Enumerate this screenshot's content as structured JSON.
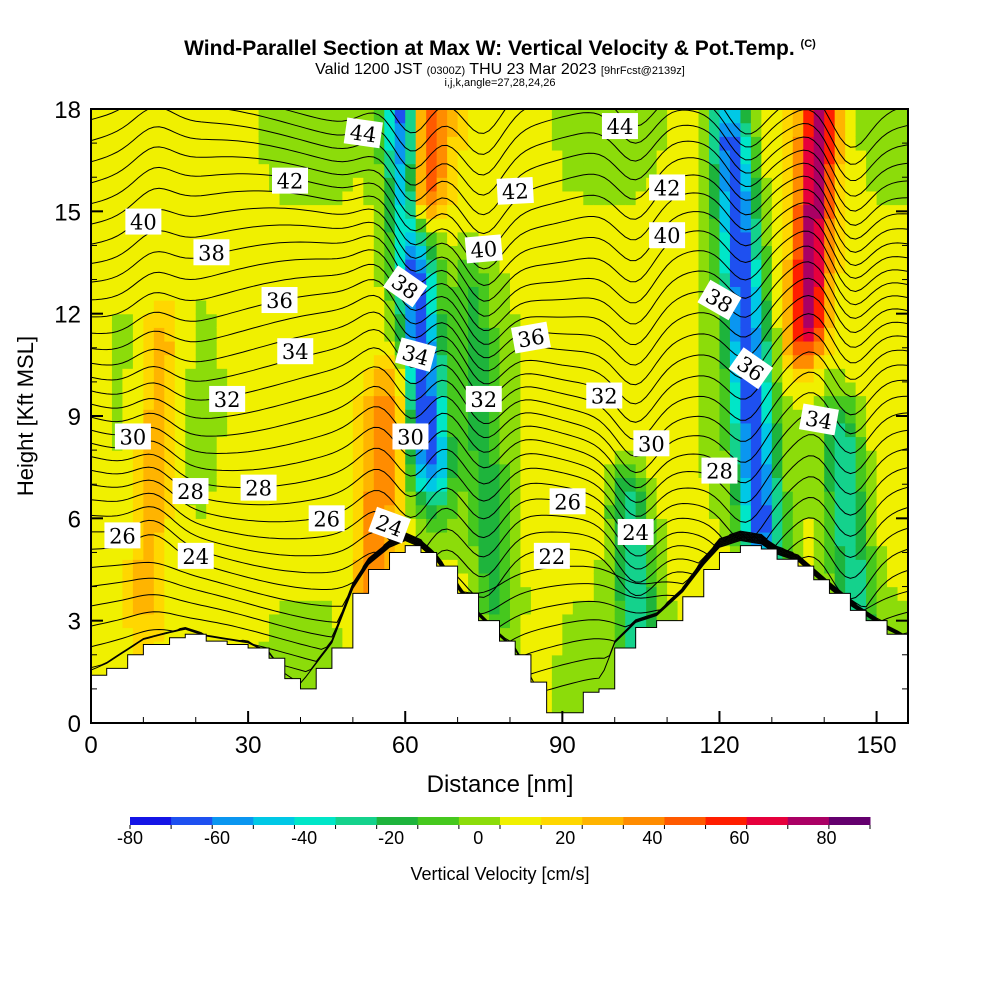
{
  "title": {
    "main": "Wind-Parallel Section at Max W: Vertical Velocity & Pot.Temp.",
    "mark": "(C)",
    "valid_prefix": "Valid 1200 JST",
    "valid_utc": "(0300Z)",
    "valid_date": "THU 23 Mar 2023",
    "fcst": "[9hrFcst@2139z]",
    "indices": "i,j,k,angle=27,28,24,26"
  },
  "chart_data": {
    "type": "heatmap",
    "xlabel": "Distance [nm]",
    "ylabel": "Height [Kft MSL]",
    "xlim": [
      0,
      156
    ],
    "ylim": [
      0,
      18
    ],
    "xticks": [
      0,
      30,
      60,
      90,
      120,
      150
    ],
    "yticks": [
      0,
      3,
      6,
      9,
      12,
      15,
      18
    ],
    "colorbar": {
      "label": "Vertical Velocity [cm/s]",
      "ticks": [
        -80,
        -60,
        -40,
        -20,
        0,
        20,
        40,
        60,
        80
      ],
      "levels": [
        -80,
        -70,
        -60,
        -50,
        -40,
        -30,
        -20,
        -10,
        0,
        10,
        20,
        30,
        40,
        50,
        60,
        70,
        80,
        90
      ],
      "colors": [
        "#1414e6",
        "#1e50f0",
        "#0a96f0",
        "#00c8e6",
        "#00e6c8",
        "#14d28c",
        "#1eb43c",
        "#46c81e",
        "#8cdc0a",
        "#f0f000",
        "#ffd700",
        "#ffb400",
        "#ff8c00",
        "#ff5a00",
        "#ff1e00",
        "#e6003c",
        "#aa0064",
        "#64006e"
      ]
    },
    "velocity_features": [
      {
        "x": 62,
        "y_range": [
          8,
          18
        ],
        "value": -70,
        "kind": "downdraft"
      },
      {
        "x": 125,
        "y_range": [
          6,
          17
        ],
        "value": -70,
        "kind": "downdraft"
      },
      {
        "x": 138,
        "y_range": [
          12,
          18
        ],
        "value": 85,
        "kind": "updraft"
      },
      {
        "x": 65,
        "y_range": [
          16,
          18
        ],
        "value": 55,
        "kind": "updraft"
      },
      {
        "x": 55,
        "y_range": [
          4,
          9
        ],
        "value": 50,
        "kind": "updraft"
      },
      {
        "x": 12,
        "y_range": [
          4,
          11
        ],
        "value": 35,
        "kind": "updraft"
      },
      {
        "x": 75,
        "y_range": [
          4,
          12
        ],
        "value": -15,
        "kind": "downdraft"
      },
      {
        "x": 104,
        "y_range": [
          2,
          6
        ],
        "value": -30,
        "kind": "downdraft"
      },
      {
        "x": 145,
        "y_range": [
          2,
          8
        ],
        "value": -30,
        "kind": "downdraft"
      }
    ],
    "terrain_kft": [
      [
        0,
        1.4
      ],
      [
        3,
        1.6
      ],
      [
        7,
        2.0
      ],
      [
        10,
        2.3
      ],
      [
        15,
        2.5
      ],
      [
        18,
        2.6
      ],
      [
        22,
        2.4
      ],
      [
        26,
        2.3
      ],
      [
        30,
        2.2
      ],
      [
        34,
        1.9
      ],
      [
        37,
        1.3
      ],
      [
        40,
        1.0
      ],
      [
        43,
        1.6
      ],
      [
        46,
        2.2
      ],
      [
        50,
        3.8
      ],
      [
        53,
        4.5
      ],
      [
        57,
        5.0
      ],
      [
        60,
        5.2
      ],
      [
        63,
        5.0
      ],
      [
        66,
        4.6
      ],
      [
        70,
        3.8
      ],
      [
        74,
        3.0
      ],
      [
        78,
        2.4
      ],
      [
        81,
        2.0
      ],
      [
        84,
        1.2
      ],
      [
        87,
        0.3
      ],
      [
        92,
        0.3
      ],
      [
        94,
        0.9
      ],
      [
        97,
        1.0
      ],
      [
        100,
        2.2
      ],
      [
        104,
        2.8
      ],
      [
        108,
        3.0
      ],
      [
        113,
        3.7
      ],
      [
        117,
        4.5
      ],
      [
        120,
        5.0
      ],
      [
        124,
        5.2
      ],
      [
        128,
        5.1
      ],
      [
        131,
        4.8
      ],
      [
        135,
        4.6
      ],
      [
        138,
        4.2
      ],
      [
        141,
        3.8
      ],
      [
        145,
        3.3
      ],
      [
        148,
        3.0
      ],
      [
        152,
        2.6
      ],
      [
        156,
        2.3
      ]
    ],
    "contour_labels": [
      {
        "text": "44",
        "x": 52,
        "y": 17.3,
        "angle": 8
      },
      {
        "text": "44",
        "x": 101,
        "y": 17.5,
        "angle": 0
      },
      {
        "text": "42",
        "x": 38,
        "y": 15.9,
        "angle": 0
      },
      {
        "text": "42",
        "x": 81,
        "y": 15.6,
        "angle": -3
      },
      {
        "text": "42",
        "x": 110,
        "y": 15.7,
        "angle": 0
      },
      {
        "text": "40",
        "x": 10,
        "y": 14.7,
        "angle": 0
      },
      {
        "text": "40",
        "x": 75,
        "y": 13.9,
        "angle": -5
      },
      {
        "text": "40",
        "x": 110,
        "y": 14.3,
        "angle": 0
      },
      {
        "text": "38",
        "x": 23,
        "y": 13.8,
        "angle": 0
      },
      {
        "text": "38",
        "x": 60,
        "y": 12.8,
        "angle": 35
      },
      {
        "text": "38",
        "x": 120,
        "y": 12.4,
        "angle": 30
      },
      {
        "text": "36",
        "x": 36,
        "y": 12.4,
        "angle": 0
      },
      {
        "text": "36",
        "x": 84,
        "y": 11.3,
        "angle": -10
      },
      {
        "text": "36",
        "x": 126,
        "y": 10.4,
        "angle": 35
      },
      {
        "text": "34",
        "x": 39,
        "y": 10.9,
        "angle": 0
      },
      {
        "text": "34",
        "x": 62,
        "y": 10.8,
        "angle": 15
      },
      {
        "text": "34",
        "x": 139,
        "y": 8.9,
        "angle": 10
      },
      {
        "text": "32",
        "x": 26,
        "y": 9.5,
        "angle": 0
      },
      {
        "text": "32",
        "x": 75,
        "y": 9.5,
        "angle": 0
      },
      {
        "text": "32",
        "x": 98,
        "y": 9.6,
        "angle": 0
      },
      {
        "text": "30",
        "x": 8,
        "y": 8.4,
        "angle": 0
      },
      {
        "text": "30",
        "x": 61,
        "y": 8.4,
        "angle": 0
      },
      {
        "text": "30",
        "x": 107,
        "y": 8.2,
        "angle": 0
      },
      {
        "text": "28",
        "x": 19,
        "y": 6.8,
        "angle": 0
      },
      {
        "text": "28",
        "x": 32,
        "y": 6.9,
        "angle": 0
      },
      {
        "text": "28",
        "x": 120,
        "y": 7.4,
        "angle": 0
      },
      {
        "text": "26",
        "x": 6,
        "y": 5.5,
        "angle": 0
      },
      {
        "text": "26",
        "x": 45,
        "y": 6.0,
        "angle": 0
      },
      {
        "text": "26",
        "x": 91,
        "y": 6.5,
        "angle": 0
      },
      {
        "text": "24",
        "x": 20,
        "y": 4.9,
        "angle": 0
      },
      {
        "text": "24",
        "x": 57,
        "y": 5.8,
        "angle": 20
      },
      {
        "text": "24",
        "x": 104,
        "y": 5.6,
        "angle": 0
      },
      {
        "text": "22",
        "x": 88,
        "y": 4.9,
        "angle": 0
      }
    ]
  }
}
